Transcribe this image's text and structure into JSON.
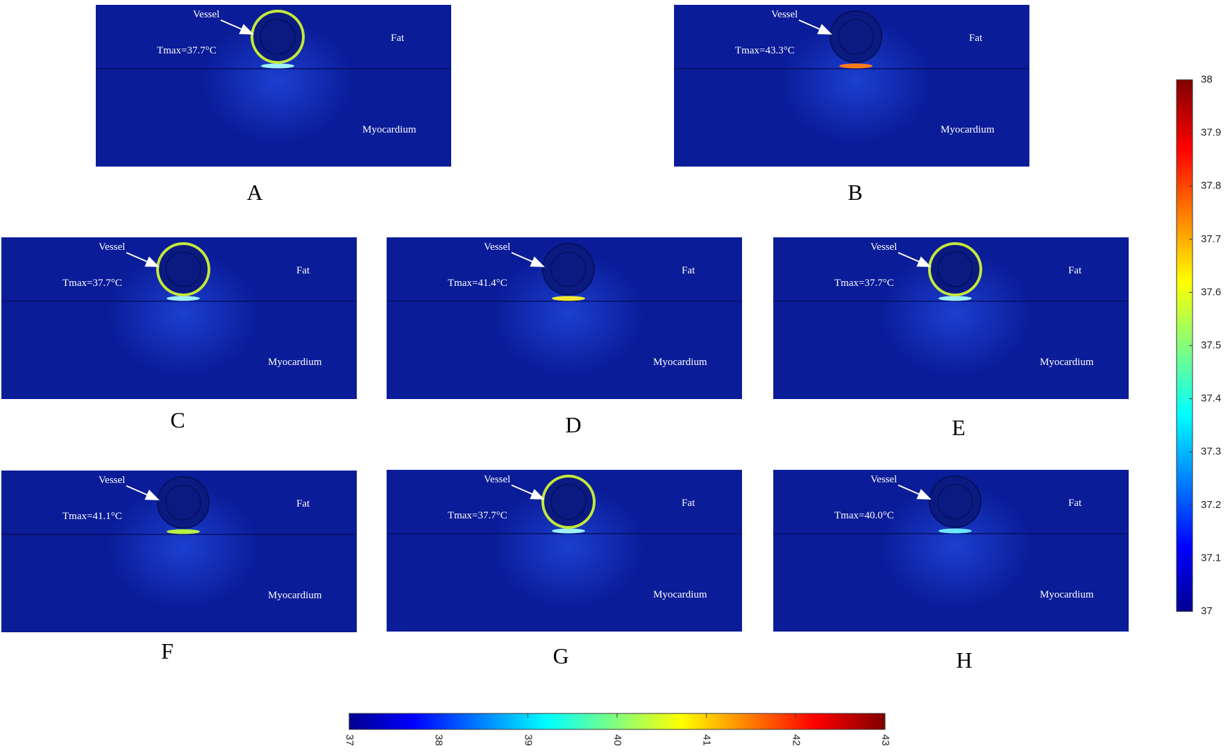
{
  "panels": [
    {
      "label": "A",
      "vessel": "Vessel",
      "fat": "Fat",
      "myocardium": "Myocardium",
      "tmax": "Tmax=37.7°C",
      "ring_highlight": true,
      "hotspot_color": "#9ef0ff"
    },
    {
      "label": "B",
      "vessel": "Vessel",
      "fat": "Fat",
      "myocardium": "Myocardium",
      "tmax": "Tmax=43.3°C",
      "ring_highlight": false,
      "hotspot_color": "#ff7a1a"
    },
    {
      "label": "C",
      "vessel": "Vessel",
      "fat": "Fat",
      "myocardium": "Myocardium",
      "tmax": "Tmax=37.7°C",
      "ring_highlight": true,
      "hotspot_color": "#9ef0ff"
    },
    {
      "label": "D",
      "vessel": "Vessel",
      "fat": "Fat",
      "myocardium": "Myocardium",
      "tmax": "Tmax=41.4°C",
      "ring_highlight": false,
      "hotspot_color": "#f2e830"
    },
    {
      "label": "E",
      "vessel": "Vessel",
      "fat": "Fat",
      "myocardium": "Myocardium",
      "tmax": "Tmax=37.7°C",
      "ring_highlight": true,
      "hotspot_color": "#9ef0ff"
    },
    {
      "label": "F",
      "vessel": "Vessel",
      "fat": "Fat",
      "myocardium": "Myocardium",
      "tmax": "Tmax=41.1°C",
      "ring_highlight": false,
      "hotspot_color": "#b8f040"
    },
    {
      "label": "G",
      "vessel": "Vessel",
      "fat": "Fat",
      "myocardium": "Myocardium",
      "tmax": "Tmax=37.7°C",
      "ring_highlight": true,
      "hotspot_color": "#9ef0ff"
    },
    {
      "label": "H",
      "vessel": "Vessel",
      "fat": "Fat",
      "myocardium": "Myocardium",
      "tmax": "Tmax=40.0°C",
      "ring_highlight": false,
      "hotspot_color": "#6fe8ff"
    }
  ],
  "colorbar_right": {
    "range": [
      37,
      38
    ],
    "ticks": [
      37,
      37.1,
      37.2,
      37.3,
      37.4,
      37.5,
      37.6,
      37.7,
      37.8,
      37.9,
      38
    ]
  },
  "colorbar_bottom": {
    "range": [
      37,
      43
    ],
    "ticks": [
      37,
      38,
      39,
      40,
      41,
      42,
      43
    ]
  }
}
